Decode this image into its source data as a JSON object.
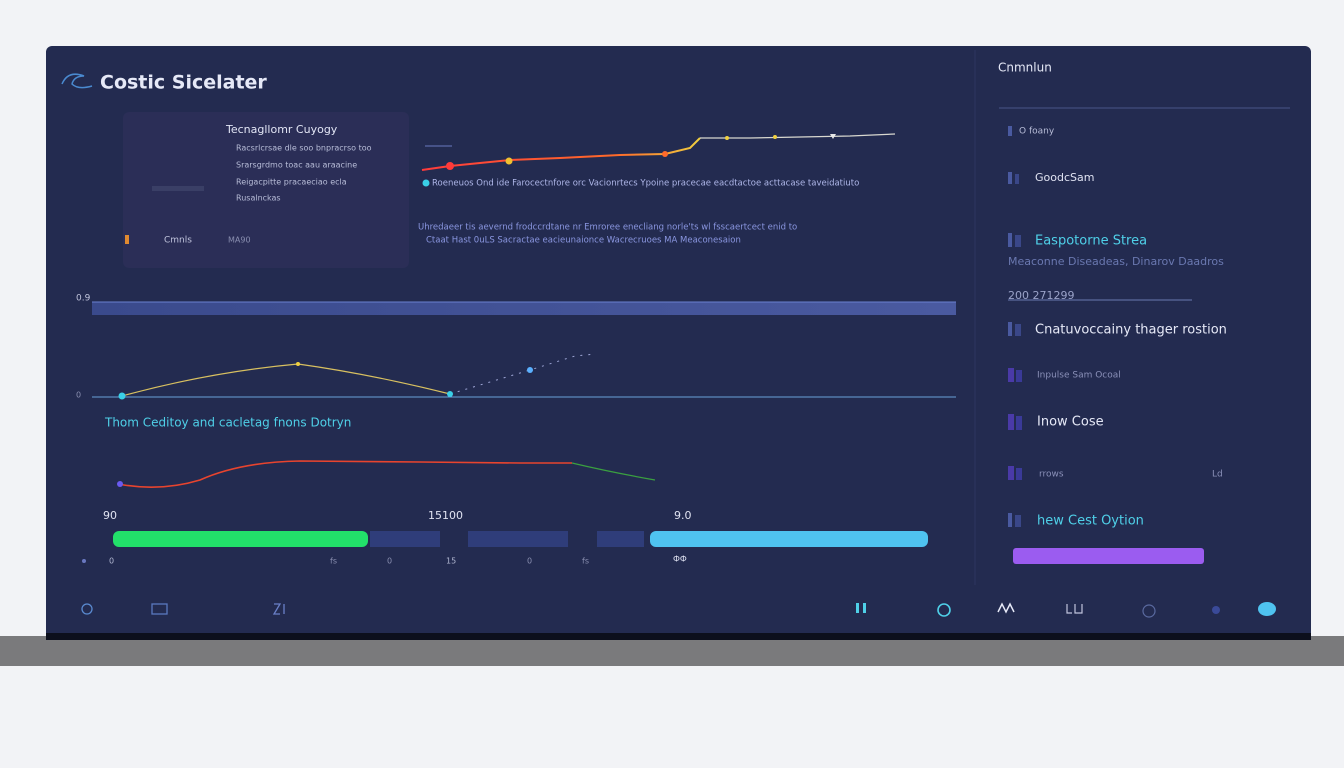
{
  "brand": "Costic Sicelater",
  "info_card": {
    "title": "Tecnagllomr Cuyogy",
    "lines": [
      "Racsrlcrsae dle soo bnpracrso too",
      "Srarsgrdmo toac aau araacine",
      "Reigacpitte pracaeciao ecla",
      "Rusalnckas"
    ],
    "footer": [
      "Cmnls",
      "MA90"
    ]
  },
  "top_chart": {
    "legend": "Roeneuos Ond ide Farocectnfore orc Vacionrtecs Ypoine pracecae eacdtactoe acttacase taveidatiuto",
    "notes": [
      "Uhredaeer tis aevernd frodccrdtane nr Emroree enecliang norle'ts wl fsscaertcect enid to",
      "Ctaat Hast 0uLS Sacractae eacieunaionce Wacrecruoes MA Meaconesaion"
    ]
  },
  "middle_chart": {
    "top_label": "0.9",
    "base_label": "0",
    "caption": "Thom Ceditoy and cacletag fnons Dotryn"
  },
  "progress": {
    "labels": [
      "90",
      "15100",
      "9.0"
    ],
    "ticks": [
      "0",
      "fs",
      "0",
      "15",
      "0",
      "fs",
      "ФФ"
    ]
  },
  "sidebar": {
    "title": "Cnmnlun",
    "items": [
      "O foany",
      "GoodcSam",
      "Easpotorne Strea",
      "Meaconne Diseadeas, Dinarov Daadros",
      "200 271299",
      "Cnatuvoccainy thager rostion",
      "Inpulse Sam Ocoal",
      "Inow Cose",
      "rrows",
      "Ld",
      "hew Cest Oytion"
    ]
  }
}
